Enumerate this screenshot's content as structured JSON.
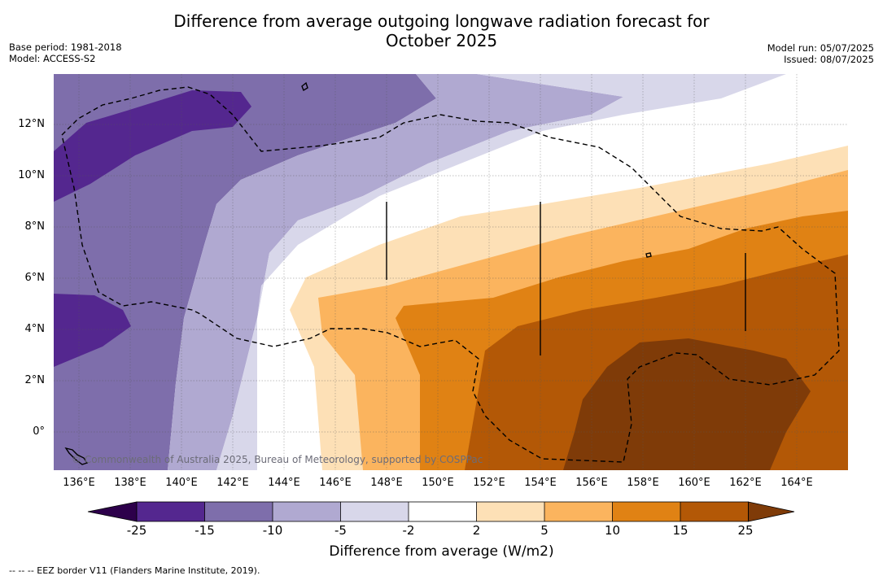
{
  "title": {
    "line1": "Difference from average outgoing longwave radiation forecast for",
    "line2": "October 2025"
  },
  "meta": {
    "base_period": "Base period: 1981-2018",
    "model": "Model: ACCESS-S2",
    "model_run": "Model run: 05/07/2025",
    "issued": "Issued: 08/07/2025"
  },
  "axes": {
    "x_ticks": [
      "136°E",
      "138°E",
      "140°E",
      "142°E",
      "144°E",
      "146°E",
      "148°E",
      "150°E",
      "152°E",
      "154°E",
      "156°E",
      "158°E",
      "160°E",
      "162°E",
      "164°E"
    ],
    "y_ticks": [
      "12°N",
      "10°N",
      "8°N",
      "6°N",
      "4°N",
      "2°N",
      "0°"
    ]
  },
  "copyright": "© Commonwealth of Australia 2025, Bureau of Meteorology, supported by COSPPac",
  "colorbar": {
    "labels": [
      "-25",
      "-15",
      "-10",
      "-5",
      "-2",
      "2",
      "5",
      "10",
      "15",
      "25"
    ],
    "title": "Difference from average (W/m2)",
    "colors": [
      "#54278f",
      "#7e6eab",
      "#b0a9d1",
      "#d8d7ea",
      "#ffffff",
      "#fde0b6",
      "#fbb45e",
      "#e08214",
      "#b35806",
      "#7f3b08"
    ],
    "extend_low": "#2d004b",
    "extend_high": "#7f3b08"
  },
  "footnote": "--  --  -- EEZ border V11 (Flanders Marine Institute, 2019)."
}
